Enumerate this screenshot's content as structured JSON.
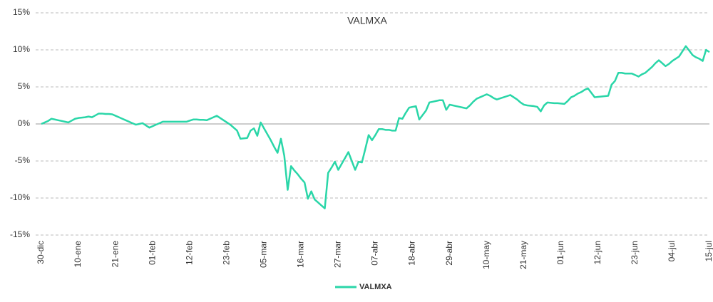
{
  "chart_data": {
    "type": "line",
    "title": "VALMXA",
    "categories": [
      "30-dic",
      null,
      null,
      null,
      null,
      null,
      null,
      null,
      null,
      null,
      null,
      "10-ene",
      null,
      null,
      null,
      null,
      null,
      null,
      null,
      null,
      null,
      null,
      "21-ene",
      null,
      null,
      null,
      null,
      null,
      null,
      null,
      null,
      null,
      null,
      "01-feb",
      null,
      null,
      null,
      null,
      null,
      null,
      null,
      null,
      null,
      null,
      "12-feb",
      null,
      null,
      null,
      null,
      null,
      null,
      null,
      null,
      null,
      null,
      "23-feb",
      null,
      null,
      null,
      null,
      null,
      null,
      null,
      null,
      null,
      null,
      "05-mar",
      null,
      null,
      null,
      null,
      null,
      null,
      null,
      null,
      null,
      null,
      "16-mar",
      null,
      null,
      null,
      null,
      null,
      null,
      null,
      null,
      null,
      null,
      "27-mar",
      null,
      null,
      null,
      null,
      null,
      null,
      null,
      null,
      null,
      null,
      "07-abr",
      null,
      null,
      null,
      null,
      null,
      null,
      null,
      null,
      null,
      null,
      "18-abr",
      null,
      null,
      null,
      null,
      null,
      null,
      null,
      null,
      null,
      null,
      "29-abr",
      null,
      null,
      null,
      null,
      null,
      null,
      null,
      null,
      null,
      null,
      "10-may",
      null,
      null,
      null,
      null,
      null,
      null,
      null,
      null,
      null,
      null,
      "21-may",
      null,
      null,
      null,
      null,
      null,
      null,
      null,
      null,
      null,
      null,
      "01-jun",
      null,
      null,
      null,
      null,
      null,
      null,
      null,
      null,
      null,
      null,
      "12-jun",
      null,
      null,
      null,
      null,
      null,
      null,
      null,
      null,
      null,
      null,
      "23-jun",
      null,
      null,
      null,
      null,
      null,
      null,
      null,
      null,
      null,
      null,
      "04-jul",
      null,
      null,
      null,
      null,
      null,
      null,
      null,
      null,
      null,
      null,
      "15-jul"
    ],
    "series": [
      {
        "name": "VALMXA",
        "color": "#2ad6a8",
        "values": [
          0,
          0.2,
          0.4,
          0.7,
          0.6,
          0.5,
          0.4,
          0.3,
          0.2,
          0.45,
          0.7,
          0.8,
          0.85,
          0.9,
          1.0,
          0.9,
          1.15,
          1.4,
          1.4,
          1.35,
          1.35,
          1.3,
          1.1,
          0.9,
          0.7,
          0.5,
          0.3,
          0.1,
          -0.1,
          0.0,
          0.1,
          -0.2,
          -0.5,
          -0.3,
          -0.1,
          0.1,
          0.3,
          0.3,
          0.3,
          0.3,
          0.3,
          0.3,
          0.3,
          0.3,
          0.45,
          0.6,
          0.6,
          0.55,
          0.55,
          0.5,
          0.7,
          0.9,
          1.1,
          0.8,
          0.5,
          0.2,
          -0.1,
          -0.5,
          -0.9,
          -2.0,
          -1.95,
          -1.9,
          -0.9,
          -0.6,
          -1.6,
          0.2,
          -0.6,
          -1.4,
          -2.2,
          -3.1,
          -3.9,
          -2.0,
          -4.3,
          -8.9,
          -5.7,
          -6.3,
          -6.8,
          -7.4,
          -7.9,
          -10.1,
          -9.1,
          -10.2,
          -10.6,
          -11.0,
          -11.4,
          -6.6,
          -5.9,
          -5.1,
          -6.2,
          -5.4,
          -4.6,
          -3.8,
          -5.0,
          -6.2,
          -5.1,
          -5.2,
          -3.4,
          -1.5,
          -2.2,
          -1.5,
          -0.7,
          -0.7,
          -0.8,
          -0.8,
          -0.9,
          -0.9,
          0.8,
          0.7,
          1.5,
          2.2,
          2.3,
          2.4,
          0.6,
          1.2,
          1.8,
          2.9,
          3.0,
          3.1,
          3.2,
          3.2,
          1.9,
          2.6,
          2.5,
          2.4,
          2.3,
          2.2,
          2.1,
          2.5,
          3.0,
          3.4,
          3.6,
          3.8,
          4.0,
          3.8,
          3.5,
          3.3,
          3.45,
          3.6,
          3.75,
          3.9,
          3.6,
          3.3,
          2.9,
          2.6,
          2.5,
          2.45,
          2.4,
          2.3,
          1.7,
          2.5,
          2.9,
          2.85,
          2.8,
          2.8,
          2.75,
          2.7,
          3.1,
          3.6,
          3.8,
          4.1,
          4.3,
          4.6,
          4.8,
          4.2,
          3.6,
          3.65,
          3.7,
          3.75,
          3.8,
          5.3,
          5.8,
          6.9,
          6.9,
          6.8,
          6.8,
          6.8,
          6.6,
          6.4,
          6.7,
          6.9,
          7.3,
          7.7,
          8.2,
          8.6,
          8.2,
          7.8,
          8.1,
          8.5,
          8.8,
          9.1,
          9.8,
          10.5,
          9.9,
          9.3,
          9.0,
          8.8,
          8.5,
          10.0,
          9.7
        ]
      }
    ],
    "ylim": [
      -15,
      15
    ],
    "yticks": [
      {
        "value": -15,
        "label": "-15%"
      },
      {
        "value": -10,
        "label": "-10%"
      },
      {
        "value": -5,
        "label": "-5%"
      },
      {
        "value": 0,
        "label": "0%"
      },
      {
        "value": 5,
        "label": "5%"
      },
      {
        "value": 10,
        "label": "10%"
      },
      {
        "value": 15,
        "label": "15%"
      }
    ],
    "grid": true,
    "legend": "bottom"
  }
}
